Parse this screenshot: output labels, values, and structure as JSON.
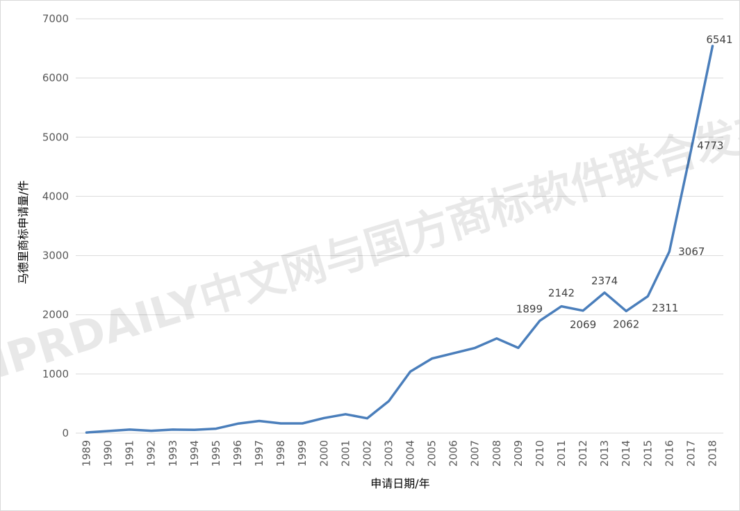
{
  "chart_data": {
    "type": "line",
    "title": "",
    "xlabel": "申请日期/年",
    "ylabel": "马德里商标申请量/件",
    "ylim": [
      0,
      7000
    ],
    "yticks": [
      0,
      1000,
      2000,
      3000,
      4000,
      5000,
      6000,
      7000
    ],
    "grid": true,
    "legend": "none",
    "color": "#4a7ebb",
    "x": [
      "1989",
      "1990",
      "1991",
      "1992",
      "1993",
      "1994",
      "1995",
      "1996",
      "1997",
      "1998",
      "1999",
      "2000",
      "2001",
      "2002",
      "2003",
      "2004",
      "2005",
      "2006",
      "2007",
      "2008",
      "2009",
      "2010",
      "2011",
      "2012",
      "2013",
      "2014",
      "2015",
      "2016",
      "2017",
      "2018"
    ],
    "series": [
      {
        "values": [
          10,
          35,
          60,
          40,
          60,
          55,
          75,
          160,
          205,
          165,
          165,
          255,
          320,
          250,
          540,
          1040,
          1260,
          1350,
          1440,
          1600,
          1440,
          1899,
          2142,
          2069,
          2374,
          2062,
          2311,
          3067,
          4773,
          6541
        ]
      }
    ],
    "data_labels": [
      {
        "x": "2010",
        "text": "1899"
      },
      {
        "x": "2011",
        "text": "2142"
      },
      {
        "x": "2012",
        "text": "2069"
      },
      {
        "x": "2013",
        "text": "2374"
      },
      {
        "x": "2014",
        "text": "2062"
      },
      {
        "x": "2015",
        "text": "2311"
      },
      {
        "x": "2016",
        "text": "3067"
      },
      {
        "x": "2017",
        "text": "4773"
      },
      {
        "x": "2018",
        "text": "6541"
      }
    ]
  },
  "watermark": "IPRDAILY中文网与国方商标软件联合发布"
}
